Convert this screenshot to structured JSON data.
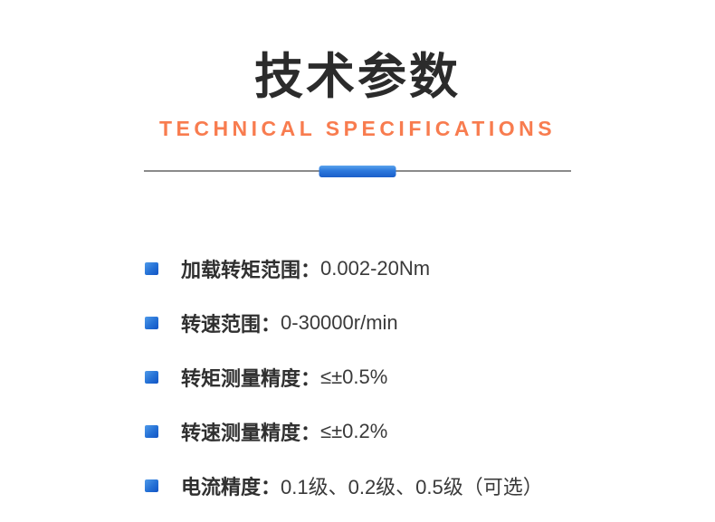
{
  "header": {
    "title": "技术参数",
    "subtitle": "TECHNICAL SPECIFICATIONS"
  },
  "specs": [
    {
      "label": "加载转矩范围：",
      "value": "0.002-20Nm"
    },
    {
      "label": "转速范围：",
      "value": "0-30000r/min"
    },
    {
      "label": "转矩测量精度：",
      "value": "≤±0.5%"
    },
    {
      "label": "转速测量精度：",
      "value": "≤±0.2%"
    },
    {
      "label": "电流精度：",
      "value": "0.1级、0.2级、0.5级（可选）"
    }
  ],
  "icons": {
    "bullet": "square-bullet"
  },
  "colors": {
    "title_text": "#2b2b2b",
    "subtitle_orange": "#f87c4f",
    "divider_gray": "#8a8a8a",
    "accent_blue": "#2470d5",
    "accent_blue_light": "#4f9ae9",
    "accent_blue_dark": "#1254c4",
    "body_text": "#333333"
  }
}
